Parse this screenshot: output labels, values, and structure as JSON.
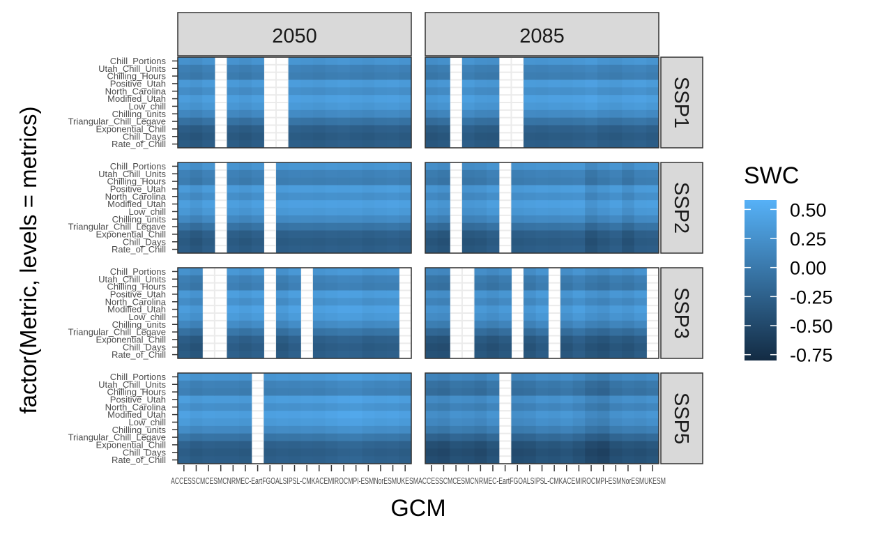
{
  "chart_data": {
    "type": "heatmap",
    "title": "",
    "xlabel": "GCM",
    "ylabel": "factor(Metric, levels = metrics)",
    "facet_columns": [
      "2050",
      "2085"
    ],
    "facet_rows": [
      "SSP1",
      "SSP2",
      "SSP3",
      "SSP5"
    ],
    "metrics": [
      "Chill_Portions",
      "Utah_Chill_Units",
      "Chilling_Hours",
      "Positive_Utah",
      "North_Carolina",
      "Modified_Utah",
      "Low_chill",
      "Chilling_units",
      "Triangular_Chill_Legave",
      "Exponential_Chill",
      "Chill_Days",
      "Rate_of_Chill"
    ],
    "gcm_count": 19,
    "gcm_tick_text": "ACCESSCMCESMCNRMEC-EartFGOALSIPSL-CMKACEMIROCMPI-ESMNorESMUKESM",
    "legend": {
      "title": "SWC",
      "ticks": [
        0.5,
        0.25,
        0.0,
        -0.25,
        -0.5,
        -0.75
      ],
      "tick_labels": [
        "0.50",
        "0.25",
        "0.00",
        "-0.25",
        "-0.50",
        "-0.75"
      ],
      "range": [
        -0.8,
        0.58
      ],
      "low_color": "#132B43",
      "high_color": "#56B1F7",
      "placement": "right"
    },
    "missing_color": "#ebebeb",
    "metric_baseline": [
      0.26,
      0.07,
      0.02,
      0.33,
      0.21,
      0.37,
      0.3,
      0.15,
      -0.08,
      -0.28,
      -0.34,
      -0.3
    ],
    "panels": [
      {
        "period": "2050",
        "scenario": "SSP1",
        "missing_gcms": [
          3,
          7,
          8
        ],
        "gcm_offsets": [
          0.0,
          -0.04,
          0.02,
          0.0,
          0.01,
          -0.03,
          0.02,
          0.0,
          0.0,
          0.04,
          0.02,
          0.0,
          0.03,
          0.05,
          0.02,
          0.0,
          0.03,
          0.04,
          0.01
        ]
      },
      {
        "period": "2085",
        "scenario": "SSP1",
        "missing_gcms": [
          2,
          6,
          7
        ],
        "gcm_offsets": [
          -0.05,
          -0.02,
          0.0,
          0.03,
          -0.02,
          -0.03,
          0.0,
          0.0,
          0.03,
          0.02,
          0.04,
          0.03,
          0.05,
          0.08,
          0.02,
          0.0,
          0.04,
          0.06,
          0.02
        ]
      },
      {
        "period": "2050",
        "scenario": "SSP2",
        "missing_gcms": [
          3,
          7
        ],
        "gcm_offsets": [
          0.02,
          -0.05,
          0.03,
          0.0,
          0.02,
          -0.02,
          0.03,
          0.0,
          0.02,
          0.04,
          0.04,
          0.03,
          0.05,
          0.04,
          0.05,
          0.02,
          0.04,
          0.06,
          0.03
        ]
      },
      {
        "period": "2085",
        "scenario": "SSP2",
        "missing_gcms": [
          2,
          6
        ],
        "gcm_offsets": [
          -0.04,
          -0.08,
          0.0,
          -0.06,
          -0.04,
          0.02,
          0.0,
          0.0,
          0.02,
          0.04,
          0.03,
          0.05,
          0.06,
          -0.1,
          -0.03,
          0.03,
          -0.08,
          0.02,
          0.03
        ]
      },
      {
        "period": "2050",
        "scenario": "SSP3",
        "missing_gcms": [
          2,
          3,
          7,
          10,
          18
        ],
        "gcm_offsets": [
          0.0,
          -0.06,
          0.0,
          0.0,
          0.06,
          0.01,
          0.06,
          0.0,
          -0.02,
          0.06,
          0.0,
          0.02,
          0.05,
          0.08,
          0.07,
          0.02,
          0.04,
          0.05,
          0.0
        ]
      },
      {
        "period": "2085",
        "scenario": "SSP3",
        "missing_gcms": [
          2,
          3,
          7,
          10,
          18
        ],
        "gcm_offsets": [
          -0.1,
          -0.12,
          0.0,
          0.0,
          -0.04,
          -0.09,
          -0.03,
          0.0,
          -0.06,
          0.02,
          0.0,
          -0.05,
          0.03,
          -0.06,
          -0.1,
          -0.02,
          -0.06,
          0.01,
          0.0
        ]
      },
      {
        "period": "2050",
        "scenario": "SSP5",
        "missing_gcms": [
          6
        ],
        "gcm_offsets": [
          0.06,
          0.0,
          0.03,
          0.02,
          0.02,
          0.0,
          0.0,
          0.03,
          0.05,
          0.04,
          0.06,
          0.05,
          0.08,
          0.11,
          0.12,
          0.08,
          0.06,
          0.07,
          0.04
        ]
      },
      {
        "period": "2085",
        "scenario": "SSP5",
        "missing_gcms": [
          6
        ],
        "gcm_offsets": [
          -0.15,
          -0.18,
          -0.1,
          -0.12,
          -0.16,
          -0.08,
          0.0,
          -0.14,
          -0.12,
          -0.06,
          -0.08,
          -0.04,
          -0.1,
          -0.2,
          -0.24,
          -0.12,
          -0.08,
          -0.1,
          -0.06
        ]
      }
    ]
  }
}
